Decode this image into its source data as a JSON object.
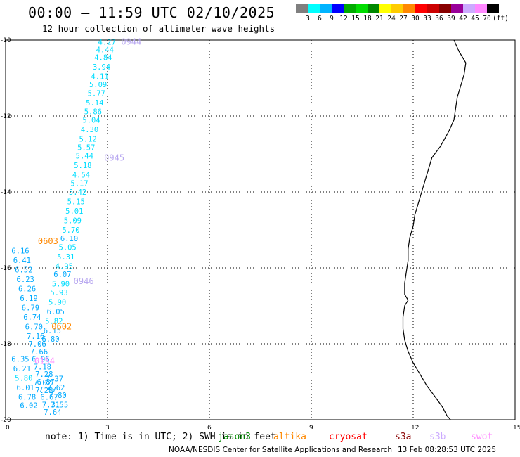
{
  "header": {
    "title": "00:00 – 11:59 UTC 02/10/2025",
    "subtitle": "12 hour collection of altimeter wave heights"
  },
  "color_scale": {
    "unit": "(ft)",
    "swatches": [
      "#7f7f7f",
      "#00ffff",
      "#00b4ff",
      "#0000ff",
      "#00aa00",
      "#00dd00",
      "#008800",
      "#ffff00",
      "#ffcc00",
      "#ff8800",
      "#ff0000",
      "#cc0000",
      "#880000",
      "#990099",
      "#ccaaff",
      "#ff88ff",
      "#000000"
    ],
    "labels": [
      "3",
      "6",
      "9",
      "12",
      "15",
      "18",
      "21",
      "24",
      "27",
      "30",
      "33",
      "36",
      "39",
      "42",
      "45",
      "70"
    ]
  },
  "axes": {
    "x_ticks": [
      "0",
      "3",
      "6",
      "9",
      "12",
      "15"
    ],
    "y_ticks": [
      "-10",
      "-12",
      "-14",
      "-16",
      "-18",
      "-20"
    ]
  },
  "chart_data": {
    "type": "scatter",
    "xlim": [
      0,
      15
    ],
    "ylim": [
      -20,
      -10
    ],
    "grid": true,
    "track_points": [
      {
        "x": 2.97,
        "y": -10.05,
        "label": "4.27",
        "color": "#00ddff"
      },
      {
        "x": 2.91,
        "y": -10.25,
        "label": "4.44",
        "color": "#00ddff"
      },
      {
        "x": 2.86,
        "y": -10.45,
        "label": "4.84",
        "color": "#00ddff"
      },
      {
        "x": 2.81,
        "y": -10.7,
        "label": "3.94",
        "color": "#00ddff"
      },
      {
        "x": 2.76,
        "y": -10.95,
        "label": "4.11",
        "color": "#00ddff"
      },
      {
        "x": 2.71,
        "y": -11.17,
        "label": "5.09",
        "color": "#00ddff"
      },
      {
        "x": 2.66,
        "y": -11.4,
        "label": "5.77",
        "color": "#00ddff"
      },
      {
        "x": 2.61,
        "y": -11.65,
        "label": "5.14",
        "color": "#00ddff"
      },
      {
        "x": 2.56,
        "y": -11.88,
        "label": "5.86",
        "color": "#00ddff"
      },
      {
        "x": 2.51,
        "y": -12.1,
        "label": "5.04",
        "color": "#00ddff"
      },
      {
        "x": 2.46,
        "y": -12.35,
        "label": "4.30",
        "color": "#00ddff"
      },
      {
        "x": 2.41,
        "y": -12.6,
        "label": "5.12",
        "color": "#00ddff"
      },
      {
        "x": 2.36,
        "y": -12.82,
        "label": "5.57",
        "color": "#00ddff"
      },
      {
        "x": 2.31,
        "y": -13.05,
        "label": "5.44",
        "color": "#00ddff"
      },
      {
        "x": 2.26,
        "y": -13.3,
        "label": "5.18",
        "color": "#00ddff"
      },
      {
        "x": 2.21,
        "y": -13.55,
        "label": "4.54",
        "color": "#00ddff"
      },
      {
        "x": 2.16,
        "y": -13.77,
        "label": "5.17",
        "color": "#00ddff"
      },
      {
        "x": 2.11,
        "y": -14.0,
        "label": "5.42",
        "color": "#00ddff"
      },
      {
        "x": 2.06,
        "y": -14.25,
        "label": "5.15",
        "color": "#00ddff"
      },
      {
        "x": 2.01,
        "y": -14.5,
        "label": "5.01",
        "color": "#00ddff"
      },
      {
        "x": 1.96,
        "y": -14.75,
        "label": "5.09",
        "color": "#00ddff"
      },
      {
        "x": 1.91,
        "y": -15.0,
        "label": "5.70",
        "color": "#00ddff"
      },
      {
        "x": 1.86,
        "y": -15.22,
        "label": "6.10",
        "color": "#00aaff"
      },
      {
        "x": 1.81,
        "y": -15.45,
        "label": "5.05",
        "color": "#00ddff"
      },
      {
        "x": 1.76,
        "y": -15.7,
        "label": "5.31",
        "color": "#00ddff"
      },
      {
        "x": 1.71,
        "y": -15.95,
        "label": "4.95",
        "color": "#00ddff"
      },
      {
        "x": 1.66,
        "y": -16.17,
        "label": "6.07",
        "color": "#00aaff"
      },
      {
        "x": 1.61,
        "y": -16.42,
        "label": "5.90",
        "color": "#00ddff"
      },
      {
        "x": 1.56,
        "y": -16.65,
        "label": "5.93",
        "color": "#00ddff"
      },
      {
        "x": 1.51,
        "y": -16.9,
        "label": "5.90",
        "color": "#00ddff"
      },
      {
        "x": 1.46,
        "y": -17.15,
        "label": "6.05",
        "color": "#00aaff"
      },
      {
        "x": 1.41,
        "y": -17.4,
        "label": "5.82",
        "color": "#00ddff"
      },
      {
        "x": 1.36,
        "y": -17.65,
        "label": "6.15",
        "color": "#00aaff"
      },
      {
        "x": 1.31,
        "y": -17.87,
        "label": "6.80",
        "color": "#00aaff"
      },
      {
        "x": 0.42,
        "y": -15.55,
        "label": "6.16",
        "color": "#00aaff"
      },
      {
        "x": 0.47,
        "y": -15.8,
        "label": "6.41",
        "color": "#00aaff"
      },
      {
        "x": 0.52,
        "y": -16.05,
        "label": "6.52",
        "color": "#00aaff"
      },
      {
        "x": 0.57,
        "y": -16.3,
        "label": "6.23",
        "color": "#00aaff"
      },
      {
        "x": 0.62,
        "y": -16.55,
        "label": "6.26",
        "color": "#00aaff"
      },
      {
        "x": 0.67,
        "y": -16.8,
        "label": "6.19",
        "color": "#00aaff"
      },
      {
        "x": 0.72,
        "y": -17.05,
        "label": "6.79",
        "color": "#00aaff"
      },
      {
        "x": 0.77,
        "y": -17.3,
        "label": "6.74",
        "color": "#00aaff"
      },
      {
        "x": 0.82,
        "y": -17.55,
        "label": "6.70",
        "color": "#00aaff"
      },
      {
        "x": 0.87,
        "y": -17.8,
        "label": "7.16",
        "color": "#00aaff"
      },
      {
        "x": 0.92,
        "y": -18.0,
        "label": "7.06",
        "color": "#00aaff"
      },
      {
        "x": 0.97,
        "y": -18.2,
        "label": "7.66",
        "color": "#00aaff"
      },
      {
        "x": 1.02,
        "y": -18.4,
        "label": "6.96",
        "color": "#00aaff"
      },
      {
        "x": 1.07,
        "y": -18.6,
        "label": "7.18",
        "color": "#00aaff"
      },
      {
        "x": 1.12,
        "y": -18.8,
        "label": "7.28",
        "color": "#00aaff"
      },
      {
        "x": 1.17,
        "y": -19.0,
        "label": "6.87",
        "color": "#00aaff"
      },
      {
        "x": 1.22,
        "y": -19.2,
        "label": "7.57",
        "color": "#00aaff"
      },
      {
        "x": 1.27,
        "y": -19.4,
        "label": "6.67",
        "color": "#00aaff"
      },
      {
        "x": 1.32,
        "y": -19.6,
        "label": "7.31",
        "color": "#00aaff"
      },
      {
        "x": 1.37,
        "y": -19.8,
        "label": "7.64",
        "color": "#00aaff"
      },
      {
        "x": 0.42,
        "y": -18.4,
        "label": "6.35",
        "color": "#00aaff"
      },
      {
        "x": 0.47,
        "y": -18.65,
        "label": "6.21",
        "color": "#00aaff"
      },
      {
        "x": 0.52,
        "y": -18.9,
        "label": "5.80",
        "color": "#00ddff"
      },
      {
        "x": 0.57,
        "y": -19.15,
        "label": "6.01",
        "color": "#00aaff"
      },
      {
        "x": 0.62,
        "y": -19.4,
        "label": "6.78",
        "color": "#00aaff"
      },
      {
        "x": 0.67,
        "y": -19.62,
        "label": "6.02",
        "color": "#00aaff"
      },
      {
        "x": 1.42,
        "y": -18.92,
        "label": "7.37",
        "color": "#00aaff"
      },
      {
        "x": 1.47,
        "y": -19.15,
        "label": "7.62",
        "color": "#00aaff"
      },
      {
        "x": 1.52,
        "y": -19.35,
        "label": "7.80",
        "color": "#00aaff"
      },
      {
        "x": 1.57,
        "y": -19.6,
        "label": "7.55",
        "color": "#00aaff"
      },
      {
        "x": 1.07,
        "y": -19.02,
        "label": "7.02",
        "color": "#00aaff"
      },
      {
        "x": 1.12,
        "y": -19.22,
        "label": "7.28",
        "color": "#00aaff"
      }
    ],
    "pass_times": [
      {
        "x": 3.4,
        "y": -10.05,
        "label": "0944",
        "color": "#b8a8f0"
      },
      {
        "x": 2.9,
        "y": -13.1,
        "label": "0945",
        "color": "#b8a8f0"
      },
      {
        "x": 2.0,
        "y": -16.35,
        "label": "0946",
        "color": "#b8a8f0"
      },
      {
        "x": 0.95,
        "y": -15.3,
        "label": "0603",
        "color": "#ff8800"
      },
      {
        "x": 1.35,
        "y": -17.55,
        "label": "0602",
        "color": "#ff8800"
      },
      {
        "x": 0.85,
        "y": -18.45,
        "label": "0154",
        "color": "#ff88ff"
      }
    ],
    "coastline": [
      [
        13.2,
        -10.0
      ],
      [
        13.35,
        -10.3
      ],
      [
        13.55,
        -10.6
      ],
      [
        13.5,
        -10.9
      ],
      [
        13.4,
        -11.2
      ],
      [
        13.3,
        -11.5
      ],
      [
        13.25,
        -11.8
      ],
      [
        13.2,
        -12.1
      ],
      [
        13.05,
        -12.4
      ],
      [
        12.8,
        -12.8
      ],
      [
        12.55,
        -13.1
      ],
      [
        12.45,
        -13.4
      ],
      [
        12.35,
        -13.7
      ],
      [
        12.25,
        -14.0
      ],
      [
        12.15,
        -14.3
      ],
      [
        12.05,
        -14.6
      ],
      [
        12.0,
        -14.9
      ],
      [
        11.9,
        -15.2
      ],
      [
        11.85,
        -15.5
      ],
      [
        11.85,
        -15.8
      ],
      [
        11.8,
        -16.1
      ],
      [
        11.75,
        -16.4
      ],
      [
        11.75,
        -16.7
      ],
      [
        11.85,
        -16.85
      ],
      [
        11.75,
        -17.0
      ],
      [
        11.7,
        -17.3
      ],
      [
        11.7,
        -17.6
      ],
      [
        11.75,
        -17.9
      ],
      [
        11.85,
        -18.2
      ],
      [
        12.0,
        -18.5
      ],
      [
        12.2,
        -18.8
      ],
      [
        12.4,
        -19.1
      ],
      [
        12.65,
        -19.4
      ],
      [
        12.85,
        -19.65
      ],
      [
        13.0,
        -19.9
      ],
      [
        13.1,
        -20.0
      ]
    ]
  },
  "footer": {
    "note": "note: 1) Time is in UTC; 2) SWH is in feet",
    "sat_legend": [
      {
        "name": "jason3",
        "color": "#008800"
      },
      {
        "name": "altika",
        "color": "#ff8800"
      },
      {
        "name": "cryosat",
        "color": "#ff0000"
      },
      {
        "name": "s3a",
        "color": "#880000"
      },
      {
        "name": "s3b",
        "color": "#ccaaff"
      },
      {
        "name": "swot",
        "color": "#ff88ff"
      }
    ],
    "credit": "NOAA/NESDIS Center for Satellite Applications and Research",
    "timestamp": "13 Feb 08:28:53 UTC 2025"
  }
}
